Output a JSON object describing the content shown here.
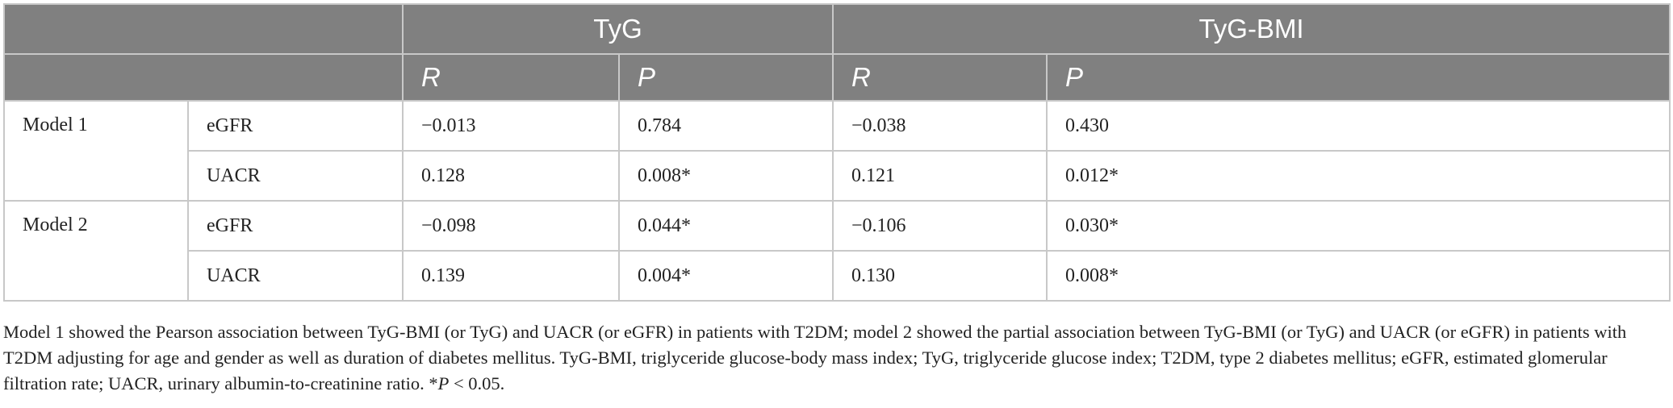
{
  "table": {
    "group_headers": [
      "TyG",
      "TyG-BMI"
    ],
    "sub_headers": [
      "R",
      "P",
      "R",
      "P"
    ],
    "models": [
      {
        "label": "Model 1",
        "rows": [
          {
            "measure": "eGFR",
            "values": [
              "−0.013",
              "0.784",
              "−0.038",
              "0.430"
            ]
          },
          {
            "measure": "UACR",
            "values": [
              "0.128",
              "0.008*",
              "0.121",
              "0.012*"
            ]
          }
        ]
      },
      {
        "label": "Model 2",
        "rows": [
          {
            "measure": "eGFR",
            "values": [
              "−0.098",
              "0.044*",
              "−0.106",
              "0.030*"
            ]
          },
          {
            "measure": "UACR",
            "values": [
              "0.139",
              "0.004*",
              "0.130",
              "0.008*"
            ]
          }
        ]
      }
    ]
  },
  "footnote": {
    "text": "Model 1 showed the Pearson association between TyG-BMI (or TyG) and UACR (or eGFR) in patients with T2DM; model 2 showed the partial association between TyG-BMI (or TyG) and UACR (or eGFR) in patients with T2DM adjusting for age and gender as well as duration of diabetes mellitus. TyG-BMI, triglyceride glucose-body mass index; TyG, triglyceride glucose index; T2DM, type 2 diabetes mellitus; eGFR, estimated glomerular filtration rate; UACR, urinary albumin-to-creatinine ratio. *",
    "sig_symbol": "P",
    "sig_threshold": " < 0.05."
  }
}
